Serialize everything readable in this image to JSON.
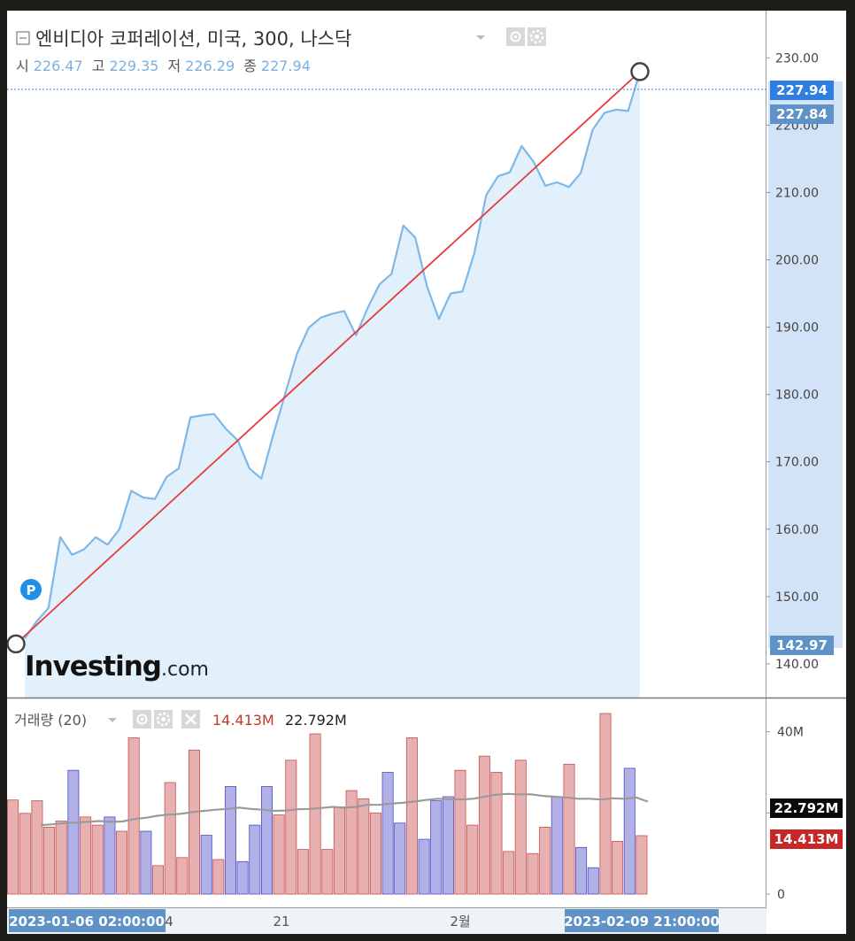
{
  "header": {
    "title": "엔비디아 코퍼레이션, 미국, 300, 나스닥",
    "ohlc": [
      {
        "label": "시",
        "value": "226.47"
      },
      {
        "label": "고",
        "value": "229.35"
      },
      {
        "label": "저",
        "value": "226.29"
      },
      {
        "label": "종",
        "value": "227.94"
      }
    ],
    "marker": "P"
  },
  "logo": {
    "text": "Investing",
    "suffix": ".com"
  },
  "price_tags": {
    "last": "227.94",
    "current": "227.84",
    "start": "142.97"
  },
  "volume_header": {
    "label": "거래량 (20)",
    "value_red": "14.413M",
    "value_avg": "22.792M"
  },
  "volume_tags": {
    "avg": "22.792M",
    "last": "14.413M"
  },
  "x_axis": {
    "ticks": [
      "4",
      "21",
      "2월"
    ],
    "start_label": "2023-01-06 02:00:00",
    "end_label": "2023-02-09 21:00:00"
  },
  "colors": {
    "line": "#7db8e8",
    "area": "#e2f0fb",
    "trend": "#e83a3a",
    "vol_up": "#e8b1b1",
    "vol_down": "#b1b1e8"
  },
  "chart_data": [
    {
      "type": "area",
      "title": "엔비디아 코퍼레이션, 미국, 300, 나스닥",
      "ylim": [
        135,
        237
      ],
      "yticks": [
        140,
        150,
        160,
        170,
        180,
        190,
        200,
        210,
        220,
        230
      ],
      "ytick_labels": [
        "140.00",
        "150.00",
        "160.00",
        "170.00",
        "180.00",
        "190.00",
        "200.00",
        "210.00",
        "220.00",
        "230.00"
      ],
      "grid": false,
      "values": [
        143.8,
        146.3,
        148.3,
        158.8,
        156.2,
        157.0,
        158.8,
        157.7,
        160.0,
        165.7,
        164.7,
        164.5,
        167.8,
        169.0,
        176.6,
        176.9,
        177.1,
        174.9,
        173.2,
        169.0,
        167.5,
        174.0,
        180.0,
        186.0,
        189.9,
        191.4,
        192.0,
        192.4,
        188.8,
        192.9,
        196.4,
        197.9,
        205.1,
        203.3,
        196.1,
        191.2,
        195.0,
        195.3,
        201.0,
        209.6,
        212.4,
        213.0,
        216.9,
        214.6,
        211.0,
        211.5,
        210.8,
        212.9,
        219.3,
        221.8,
        222.3,
        222.1,
        227.9
      ],
      "trendline": {
        "from": 142.97,
        "to": 227.94
      }
    },
    {
      "type": "bar",
      "title": "거래량 (20)",
      "ylim": [
        0,
        48
      ],
      "yticks": [
        0,
        20,
        40
      ],
      "ytick_labels": [
        "0",
        "20M",
        "40M"
      ],
      "volumes": [
        23.2,
        19.9,
        23.0,
        16.5,
        18.0,
        30.5,
        19.0,
        17.0,
        19.0,
        15.5,
        38.5,
        15.5,
        7.0,
        27.5,
        9.0,
        35.5,
        14.5,
        8.5,
        26.5,
        8.0,
        17.0,
        26.5,
        19.5,
        33.0,
        11.0,
        39.5,
        11.0,
        21.5,
        25.5,
        23.5,
        20.0,
        30.0,
        17.5,
        38.5,
        13.5,
        23.0,
        24.0,
        30.5,
        17.0,
        34.0,
        30.0,
        10.5,
        33.0,
        10.0,
        16.5,
        24.0,
        32.0,
        11.5,
        6.5,
        44.5,
        13.0,
        31.0,
        14.4
      ],
      "volume_up": [
        true,
        true,
        true,
        true,
        true,
        false,
        true,
        true,
        false,
        true,
        true,
        false,
        true,
        true,
        true,
        true,
        false,
        true,
        false,
        false,
        false,
        false,
        true,
        true,
        true,
        true,
        true,
        true,
        true,
        true,
        true,
        false,
        false,
        true,
        false,
        false,
        false,
        true,
        true,
        true,
        true,
        true,
        true,
        true,
        true,
        false,
        true,
        false,
        false,
        true,
        true,
        false,
        true
      ],
      "average": [
        17.0,
        17.2,
        17.5,
        17.6,
        17.8,
        18.0,
        17.8,
        17.9,
        18.5,
        18.8,
        19.3,
        19.6,
        19.8,
        20.2,
        20.5,
        20.8,
        21.0,
        21.3,
        21.0,
        20.8,
        20.5,
        20.6,
        20.9,
        21.0,
        21.2,
        21.5,
        21.3,
        21.5,
        22.0,
        22.0,
        22.3,
        22.5,
        22.8,
        23.2,
        23.5,
        23.4,
        23.3,
        23.5,
        24.0,
        24.5,
        24.7,
        24.6,
        24.6,
        24.2,
        24.0,
        23.8,
        23.5,
        23.5,
        23.3,
        23.6,
        23.5,
        23.8,
        22.8
      ]
    }
  ]
}
